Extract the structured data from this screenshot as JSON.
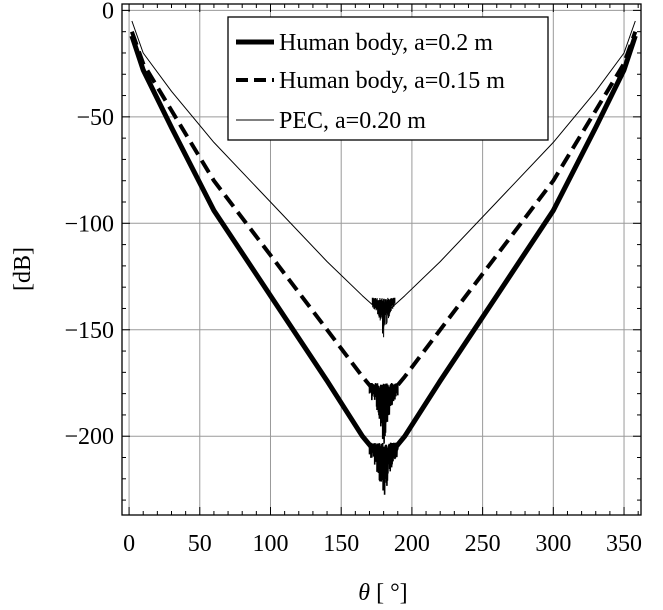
{
  "chart_data": {
    "type": "line",
    "title": "",
    "xlabel_symbol": "θ",
    "xlabel_unit": " [ °]",
    "ylabel": "[dB]",
    "xlim": [
      -5,
      362
    ],
    "ylim": [
      -237,
      3
    ],
    "xticks": [
      0,
      50,
      100,
      150,
      200,
      250,
      300,
      350
    ],
    "yticks": [
      0,
      -50,
      -100,
      -150,
      -200
    ],
    "xtick_labels": [
      "0",
      "50",
      "100",
      "150",
      "200",
      "250",
      "300",
      "350"
    ],
    "ytick_labels": [
      "0",
      "−50",
      "−100",
      "−150",
      "−200"
    ],
    "grid": true,
    "legend_position": "top-right",
    "series": [
      {
        "name": "Human body, a=0.2 m",
        "style": "thick-solid",
        "x": [
          2,
          10,
          30,
          60,
          100,
          140,
          165,
          175,
          178,
          180,
          182,
          185,
          195,
          220,
          260,
          300,
          330,
          350,
          358
        ],
        "y": [
          -12,
          -28,
          -55,
          -94,
          -134,
          -174,
          -200,
          -208,
          -212,
          -215,
          -212,
          -208,
          -200,
          -174,
          -134,
          -94,
          -55,
          -28,
          -12
        ],
        "noise_x_range": [
          170,
          190
        ],
        "noise_y_range": [
          -233,
          -203
        ]
      },
      {
        "name": "Human body, a=0.15 m",
        "style": "dashed",
        "x": [
          2,
          10,
          30,
          60,
          100,
          140,
          165,
          175,
          178,
          180,
          182,
          185,
          195,
          220,
          260,
          300,
          330,
          350,
          358
        ],
        "y": [
          -10,
          -25,
          -47,
          -80,
          -115,
          -150,
          -172,
          -180,
          -184,
          -187,
          -184,
          -180,
          -172,
          -150,
          -115,
          -80,
          -47,
          -25,
          -10
        ],
        "noise_x_range": [
          170,
          190
        ],
        "noise_y_range": [
          -205,
          -175
        ]
      },
      {
        "name": "PEC, a=0.20 m",
        "style": "thin-solid",
        "x": [
          2,
          10,
          30,
          60,
          100,
          140,
          165,
          175,
          178,
          180,
          182,
          185,
          195,
          220,
          260,
          300,
          330,
          350,
          358
        ],
        "y": [
          -5,
          -20,
          -38,
          -62,
          -90,
          -118,
          -134,
          -140,
          -141,
          -141,
          -141,
          -140,
          -134,
          -118,
          -90,
          -62,
          -38,
          -20,
          -5
        ],
        "noise_x_range": [
          172,
          188
        ],
        "noise_y_range": [
          -155,
          -135
        ]
      }
    ]
  }
}
